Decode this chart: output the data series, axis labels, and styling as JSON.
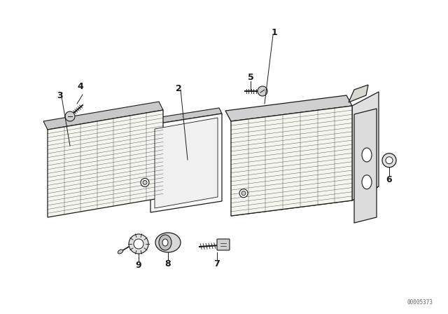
{
  "bg_color": "#ffffff",
  "line_color": "#1a1a1a",
  "watermark": "00005373",
  "fig_w": 6.4,
  "fig_h": 4.48,
  "dpi": 100
}
